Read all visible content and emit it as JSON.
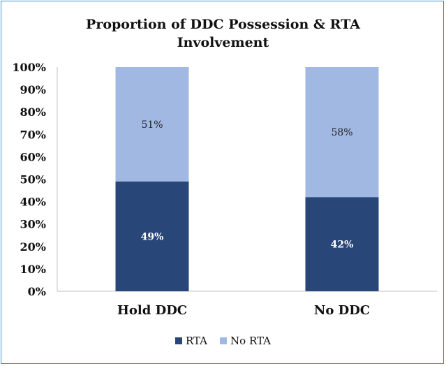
{
  "chart_data": {
    "type": "bar",
    "stacked": true,
    "title_lines": [
      "Proportion of DDC Possession & RTA",
      "Involvement"
    ],
    "categories": [
      "Hold DDC",
      "No DDC"
    ],
    "series": [
      {
        "name": "RTA",
        "values": [
          49,
          42
        ],
        "labels": [
          "49%",
          "42%"
        ],
        "color": "#284677"
      },
      {
        "name": "No RTA",
        "values": [
          51,
          58
        ],
        "labels": [
          "51%",
          "58%"
        ],
        "color": "#a1b8e3"
      }
    ],
    "ylim": [
      0,
      100
    ],
    "yticks": [
      0,
      10,
      20,
      30,
      40,
      50,
      60,
      70,
      80,
      90,
      100
    ],
    "ytick_labels": [
      "0%",
      "10%",
      "20%",
      "30%",
      "40%",
      "50%",
      "60%",
      "70%",
      "80%",
      "90%",
      "100%"
    ],
    "grid": false,
    "legend_position": "bottom",
    "axis_color": "#bfbfbf"
  }
}
